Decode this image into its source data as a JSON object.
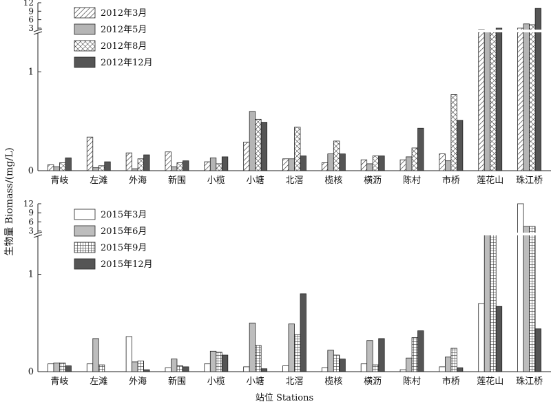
{
  "ylabel": "生物量 Biomass/(mg/L)",
  "xlabel": "站位 Stations",
  "chart_data": [
    {
      "type": "bar",
      "categories": [
        "青岐",
        "左滩",
        "外海",
        "新围",
        "小榄",
        "小塘",
        "北滘",
        "榄核",
        "横沥",
        "陈村",
        "市桥",
        "莲花山",
        "珠江桥"
      ],
      "series": [
        {
          "name": "2012年3月",
          "values": [
            0.06,
            0.34,
            0.18,
            0.19,
            0.09,
            0.29,
            0.12,
            0.08,
            0.11,
            0.11,
            0.17,
            2.5,
            3.0
          ]
        },
        {
          "name": "2012年5月",
          "values": [
            0.04,
            0.03,
            0.02,
            0.04,
            0.13,
            0.6,
            0.12,
            0.17,
            0.07,
            0.14,
            0.1,
            2.0,
            4.5
          ]
        },
        {
          "name": "2012年8月",
          "values": [
            0.08,
            0.05,
            0.12,
            0.08,
            0.07,
            0.52,
            0.44,
            0.3,
            0.15,
            0.23,
            0.77,
            2.0,
            4.2
          ]
        },
        {
          "name": "2012年12月",
          "values": [
            0.13,
            0.09,
            0.16,
            0.1,
            0.14,
            0.49,
            0.15,
            0.17,
            0.15,
            0.43,
            0.51,
            3.0,
            10.0
          ]
        }
      ],
      "ylim_lower": [
        0,
        1.4
      ],
      "ylim_upper": [
        2,
        12
      ],
      "yticks_lower": [
        0,
        1
      ],
      "yticks_upper": [
        3,
        6,
        9,
        12
      ],
      "legend_position": "top-left"
    },
    {
      "type": "bar",
      "categories": [
        "青岐",
        "左滩",
        "外海",
        "新围",
        "小榄",
        "小塘",
        "北滘",
        "榄核",
        "横沥",
        "陈村",
        "市桥",
        "莲花山",
        "珠江桥"
      ],
      "series": [
        {
          "name": "2015年3月",
          "values": [
            0.08,
            0.08,
            0.36,
            0.04,
            0.08,
            0.05,
            0.06,
            0.04,
            0.08,
            0.02,
            0.05,
            0.7,
            12.0
          ]
        },
        {
          "name": "2015年6月",
          "values": [
            0.09,
            0.34,
            0.1,
            0.13,
            0.21,
            0.5,
            0.49,
            0.22,
            0.32,
            0.14,
            0.15,
            2.0,
            4.5
          ]
        },
        {
          "name": "2015年9月",
          "values": [
            0.09,
            0.07,
            0.11,
            0.06,
            0.2,
            0.27,
            0.38,
            0.17,
            0.07,
            0.35,
            0.24,
            2.0,
            4.5
          ]
        },
        {
          "name": "2015年12月",
          "values": [
            0.06,
            0.0,
            0.02,
            0.05,
            0.17,
            0.03,
            0.8,
            0.13,
            0.34,
            0.42,
            0.04,
            0.67,
            0.44
          ]
        }
      ],
      "ylim_lower": [
        0,
        1.4
      ],
      "ylim_upper": [
        2,
        12
      ],
      "yticks_lower": [
        0,
        1
      ],
      "yticks_upper": [
        3,
        6,
        9,
        12
      ],
      "legend_position": "top-left"
    }
  ]
}
